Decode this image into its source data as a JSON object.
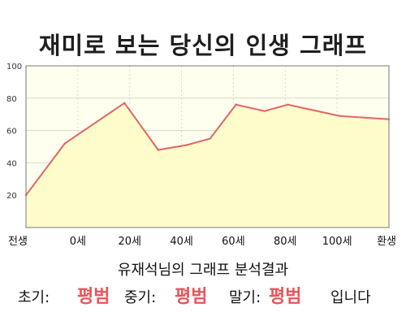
{
  "title": "재미로 보는 당신의 인생 그래프",
  "chart_data": {
    "type": "area",
    "x_labels": [
      "전생",
      "0세",
      "20세",
      "40세",
      "60세",
      "80세",
      "100세",
      "환생"
    ],
    "x": [
      -20,
      0,
      20,
      40,
      60,
      80,
      100,
      120
    ],
    "points": [
      {
        "x": -20,
        "y": 20
      },
      {
        "x": -5,
        "y": 52
      },
      {
        "x": 18,
        "y": 77
      },
      {
        "x": 31,
        "y": 48
      },
      {
        "x": 42,
        "y": 51
      },
      {
        "x": 51,
        "y": 55
      },
      {
        "x": 61,
        "y": 76
      },
      {
        "x": 72,
        "y": 72
      },
      {
        "x": 81,
        "y": 76
      },
      {
        "x": 101,
        "y": 69
      },
      {
        "x": 120,
        "y": 67
      }
    ],
    "y_ticks": [
      20,
      40,
      60,
      80,
      100
    ],
    "ylim": [
      0,
      100
    ],
    "xlim": [
      -20,
      120
    ],
    "grid": true,
    "colors": {
      "line": "#e06666",
      "fill": "#fffccc",
      "grid": "#d9d9c8",
      "plot_bg": "#fffff0"
    }
  },
  "result": {
    "heading": "유재석님의 그래프 분석결과",
    "early_label": "초기:",
    "early_value": "평범",
    "middle_label": "중기:",
    "middle_value": "평범",
    "late_label": "말기:",
    "late_value": "평범",
    "ending": "입니다"
  }
}
